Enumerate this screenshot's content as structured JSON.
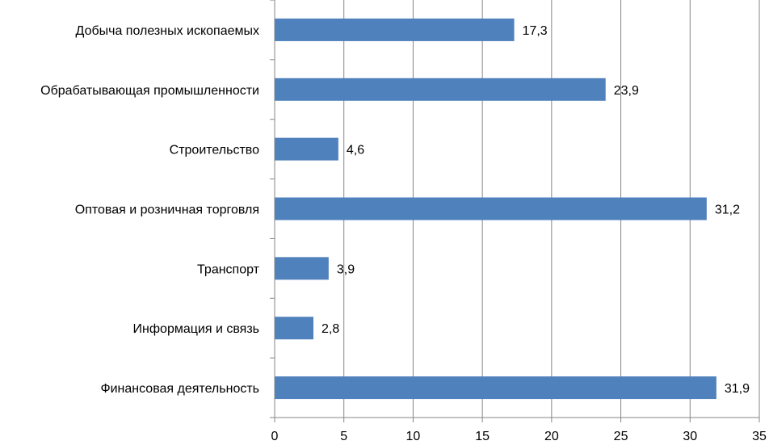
{
  "chart_data": {
    "type": "bar",
    "orientation": "horizontal",
    "categories": [
      "Добыча полезных ископаемых",
      "Обрабатывающая промышленности",
      "Строительство",
      "Оптовая и розничная торговля",
      "Транспорт",
      "Информация и связь",
      "Финансовая деятельность"
    ],
    "values": [
      17.3,
      23.9,
      4.6,
      31.2,
      3.9,
      2.8,
      31.9
    ],
    "value_labels": [
      "17,3",
      "23,9",
      "4,6",
      "31,2",
      "3,9",
      "2,8",
      "31,9"
    ],
    "xlim": [
      0,
      35
    ],
    "x_ticks": [
      0,
      5,
      10,
      15,
      20,
      25,
      30,
      35
    ],
    "x_tick_labels": [
      "0",
      "5",
      "10",
      "15",
      "20",
      "25",
      "30",
      "35"
    ],
    "grid": "vertical",
    "legend": "none",
    "colors": {
      "bar": "#4f81bd",
      "grid": "#868686",
      "axis": "#868686"
    }
  }
}
